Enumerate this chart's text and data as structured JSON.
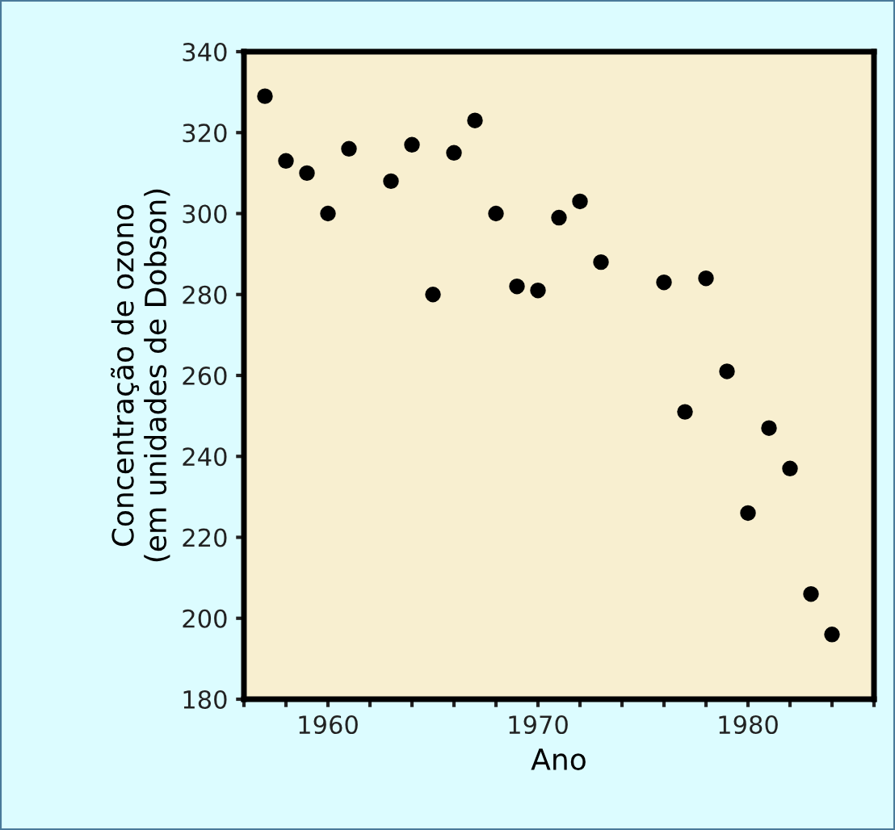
{
  "chart_data": {
    "type": "scatter",
    "xlabel": "Ano",
    "ylabel": "Concentração de ozono\n(em unidades de Dobson)",
    "x": [
      1957,
      1958,
      1959,
      1960,
      1961,
      1963,
      1964,
      1965,
      1966,
      1967,
      1968,
      1969,
      1970,
      1971,
      1972,
      1973,
      1976,
      1977,
      1978,
      1979,
      1980,
      1981,
      1982,
      1983,
      1984
    ],
    "values": [
      329,
      313,
      310,
      300,
      316,
      308,
      317,
      280,
      315,
      323,
      300,
      282,
      281,
      299,
      303,
      288,
      283,
      251,
      284,
      261,
      226,
      247,
      237,
      206,
      196
    ],
    "color": "#000000",
    "marker": "circle",
    "xlim": [
      1956,
      1986
    ],
    "xticks": [
      {
        "value": 1956,
        "label": null
      },
      {
        "value": 1958,
        "label": null
      },
      1960,
      {
        "value": 1962,
        "label": null
      },
      {
        "value": 1964,
        "label": null
      },
      {
        "value": 1966,
        "label": null
      },
      {
        "value": 1968,
        "label": null
      },
      1970,
      {
        "value": 1972,
        "label": null
      },
      {
        "value": 1974,
        "label": null
      },
      {
        "value": 1976,
        "label": null
      },
      {
        "value": 1978,
        "label": null
      },
      1980,
      {
        "value": 1982,
        "label": null
      },
      {
        "value": 1984,
        "label": null
      },
      {
        "value": 1986,
        "label": null
      }
    ],
    "ylim": [
      180,
      340
    ],
    "yticks": [
      180,
      200,
      220,
      240,
      260,
      280,
      300,
      320,
      340
    ],
    "grid": false
  }
}
